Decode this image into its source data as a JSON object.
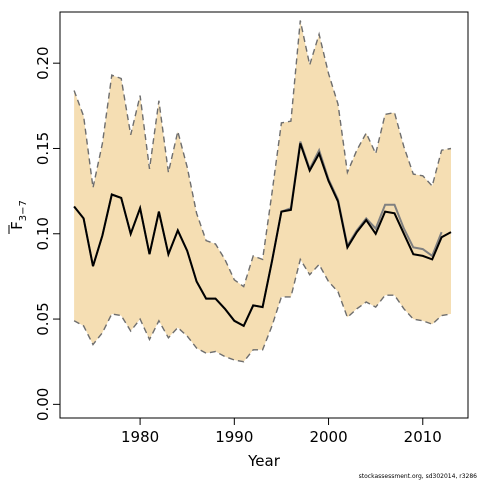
{
  "chart_data": {
    "type": "line",
    "xlabel": "Year",
    "ylabel_main": "F",
    "ylabel_sub": "3−7",
    "xlim": [
      1971.5,
      2014.8
    ],
    "ylim": [
      -0.008,
      0.23
    ],
    "x_ticks": [
      1980,
      1990,
      2000,
      2010
    ],
    "y_ticks": [
      0.0,
      0.05,
      0.1,
      0.15,
      0.2
    ],
    "y_tick_labels": [
      "0.00",
      "0.05",
      "0.10",
      "0.15",
      "0.20"
    ],
    "grid": false,
    "legend": "none",
    "footnote": "stockassessment.org, sd302014, r3286",
    "colors": {
      "band": "#f5deb3",
      "estimate": "#000000",
      "previous": "#808080",
      "bound": "#6e6e6e"
    },
    "x": [
      1973,
      1974,
      1975,
      1976,
      1977,
      1978,
      1979,
      1980,
      1981,
      1982,
      1983,
      1984,
      1985,
      1986,
      1987,
      1988,
      1989,
      1990,
      1991,
      1992,
      1993,
      1994,
      1995,
      1996,
      1997,
      1998,
      1999,
      2000,
      2001,
      2002,
      2003,
      2004,
      2005,
      2006,
      2007,
      2008,
      2009,
      2010,
      2011,
      2012,
      2013
    ],
    "series": [
      {
        "role": "estimate",
        "values": [
          0.116,
          0.109,
          0.081,
          0.099,
          0.123,
          0.121,
          0.1,
          0.115,
          0.088,
          0.113,
          0.088,
          0.102,
          0.09,
          0.072,
          0.062,
          0.062,
          0.056,
          0.049,
          0.046,
          0.058,
          0.057,
          0.084,
          0.113,
          0.114,
          0.153,
          0.137,
          0.147,
          0.131,
          0.119,
          0.092,
          0.101,
          0.108,
          0.1,
          0.113,
          0.112,
          0.1,
          0.088,
          0.087,
          0.085,
          0.098,
          0.101
        ]
      },
      {
        "role": "previous",
        "values": [
          0.116,
          0.109,
          0.081,
          0.099,
          0.123,
          0.121,
          0.1,
          0.115,
          0.088,
          0.113,
          0.088,
          0.102,
          0.09,
          0.072,
          0.062,
          0.062,
          0.056,
          0.049,
          0.046,
          0.058,
          0.057,
          0.084,
          0.113,
          0.115,
          0.154,
          0.138,
          0.149,
          0.132,
          0.12,
          0.093,
          0.102,
          0.109,
          0.103,
          0.117,
          0.117,
          0.103,
          0.092,
          0.091,
          0.087,
          0.101,
          null
        ]
      },
      {
        "role": "upper",
        "values": [
          0.184,
          0.169,
          0.127,
          0.153,
          0.193,
          0.191,
          0.158,
          0.181,
          0.138,
          0.178,
          0.136,
          0.16,
          0.139,
          0.112,
          0.096,
          0.094,
          0.085,
          0.073,
          0.069,
          0.087,
          0.085,
          0.124,
          0.165,
          0.166,
          0.225,
          0.199,
          0.217,
          0.194,
          0.176,
          0.136,
          0.149,
          0.159,
          0.147,
          0.17,
          0.171,
          0.151,
          0.135,
          0.134,
          0.128,
          0.149,
          0.15
        ]
      },
      {
        "role": "lower",
        "values": [
          0.049,
          0.046,
          0.035,
          0.042,
          0.053,
          0.052,
          0.043,
          0.05,
          0.038,
          0.049,
          0.039,
          0.045,
          0.04,
          0.033,
          0.03,
          0.031,
          0.028,
          0.026,
          0.025,
          0.032,
          0.032,
          0.046,
          0.063,
          0.063,
          0.085,
          0.076,
          0.082,
          0.072,
          0.066,
          0.051,
          0.056,
          0.06,
          0.057,
          0.064,
          0.064,
          0.056,
          0.05,
          0.049,
          0.047,
          0.052,
          0.053
        ]
      }
    ]
  }
}
